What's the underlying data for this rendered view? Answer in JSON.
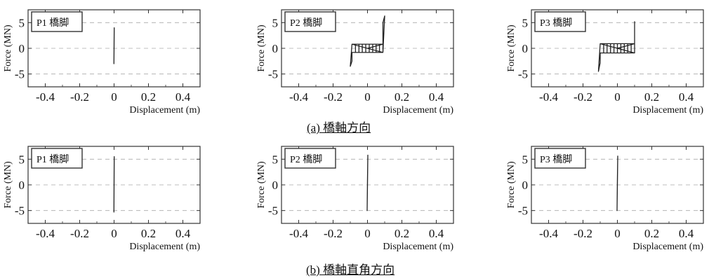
{
  "captions": {
    "a": "(a) 橋軸方向",
    "b": "(b) 橋軸直角方向"
  },
  "colors": {
    "line": "#222222",
    "grid": "#aaaaaa"
  },
  "chart_data": [
    {
      "type": "line",
      "group": "a",
      "label": "P1 橋脚",
      "xlabel": "Displacement (m)",
      "ylabel": "Force (MN)",
      "xlim": [
        -0.5,
        0.5
      ],
      "ylim": [
        -7.5,
        7.5
      ],
      "xticks": [
        -0.4,
        -0.2,
        0,
        0.2,
        0.4
      ],
      "yticks": [
        -5,
        0,
        5
      ],
      "xtick_labels": [
        "-0.4",
        "-0.2",
        "0",
        "0.2",
        "0.4"
      ],
      "ytick_labels": [
        "-5",
        "0",
        "5"
      ],
      "grid": true,
      "series": [
        {
          "x": [
            0,
            0.001,
            0,
            -0.001,
            0
          ],
          "y": [
            0,
            4.0,
            1.0,
            -3.0,
            0
          ]
        }
      ]
    },
    {
      "type": "line",
      "group": "a",
      "label": "P2 橋脚",
      "xlabel": "Displacement (m)",
      "ylabel": "Force (MN)",
      "xlim": [
        -0.5,
        0.5
      ],
      "ylim": [
        -7.5,
        7.5
      ],
      "xticks": [
        -0.4,
        -0.2,
        0,
        0.2,
        0.4
      ],
      "yticks": [
        -5,
        0,
        5
      ],
      "xtick_labels": [
        "-0.4",
        "-0.2",
        "0",
        "0.2",
        "0.4"
      ],
      "ytick_labels": [
        "-5",
        "0",
        "5"
      ],
      "grid": true,
      "series": [
        {
          "x": [
            0,
            0.09,
            0.09,
            0.1,
            0.09,
            -0.09,
            -0.09,
            -0.1,
            -0.09,
            0.09,
            0.09,
            -0.09,
            -0.07,
            -0.07,
            -0.05,
            -0.05,
            -0.03,
            -0.03,
            -0.01,
            -0.01,
            0.01,
            0.01,
            0.03,
            0.03,
            0.05,
            0.05,
            0.07,
            0.07
          ],
          "y": [
            0,
            0.8,
            5.0,
            6.3,
            -0.8,
            -0.8,
            -2.5,
            -3.5,
            0.8,
            0.8,
            -0.8,
            0.8,
            0.8,
            -0.8,
            -0.8,
            0.8,
            0.8,
            -0.8,
            -0.8,
            0.8,
            0.8,
            -0.8,
            -0.8,
            0.8,
            0.8,
            -0.8,
            -0.8,
            0.8
          ]
        }
      ]
    },
    {
      "type": "line",
      "group": "a",
      "label": "P3 橋脚",
      "xlabel": "Displacement (m)",
      "ylabel": "Force (MN)",
      "xlim": [
        -0.5,
        0.5
      ],
      "ylim": [
        -7.5,
        7.5
      ],
      "xticks": [
        -0.4,
        -0.2,
        0,
        0.2,
        0.4
      ],
      "yticks": [
        -5,
        0,
        5
      ],
      "xtick_labels": [
        "-0.4",
        "-0.2",
        "0",
        "0.2",
        "0.4"
      ],
      "ytick_labels": [
        "-5",
        "0",
        "5"
      ],
      "grid": true,
      "series": [
        {
          "x": [
            0,
            0.1,
            0.1,
            0.1,
            0.1,
            -0.1,
            -0.1,
            -0.11,
            -0.1,
            0.1,
            0.1,
            -0.1,
            -0.08,
            -0.08,
            -0.06,
            -0.06,
            -0.04,
            -0.04,
            -0.02,
            -0.02,
            0,
            0,
            0.02,
            0.02,
            0.04,
            0.04,
            0.06,
            0.06,
            0.08,
            0.08
          ],
          "y": [
            0,
            0.9,
            3.5,
            5.2,
            -0.9,
            -0.9,
            -2.8,
            -4.5,
            0.9,
            0.9,
            -0.9,
            0.9,
            0.9,
            -0.9,
            -0.9,
            0.9,
            0.9,
            -0.9,
            -0.9,
            0.9,
            0.9,
            -0.9,
            -0.9,
            0.9,
            0.9,
            -0.9,
            -0.9,
            0.9,
            0.9,
            -0.9
          ]
        }
      ]
    },
    {
      "type": "line",
      "group": "b",
      "label": "P1 橋脚",
      "xlabel": "Displacement (m)",
      "ylabel": "Force (MN)",
      "xlim": [
        -0.5,
        0.5
      ],
      "ylim": [
        -7.5,
        7.5
      ],
      "xticks": [
        -0.4,
        -0.2,
        0,
        0.2,
        0.4
      ],
      "yticks": [
        -5,
        0,
        5
      ],
      "xtick_labels": [
        "-0.4",
        "-0.2",
        "0",
        "0.2",
        "0.4"
      ],
      "ytick_labels": [
        "-5",
        "0",
        "5"
      ],
      "grid": true,
      "series": [
        {
          "x": [
            0,
            0.001,
            0,
            -0.001,
            0
          ],
          "y": [
            0,
            5.5,
            1.0,
            -5.3,
            0
          ]
        }
      ]
    },
    {
      "type": "line",
      "group": "b",
      "label": "P2 橋脚",
      "xlabel": "Displacement (m)",
      "ylabel": "Force (MN)",
      "xlim": [
        -0.5,
        0.5
      ],
      "ylim": [
        -7.5,
        7.5
      ],
      "xticks": [
        -0.4,
        -0.2,
        0,
        0.2,
        0.4
      ],
      "yticks": [
        -5,
        0,
        5
      ],
      "xtick_labels": [
        "-0.4",
        "-0.2",
        "0",
        "0.2",
        "0.4"
      ],
      "ytick_labels": [
        "-5",
        "0",
        "5"
      ],
      "grid": true,
      "series": [
        {
          "x": [
            0,
            0.002,
            0,
            -0.002,
            0
          ],
          "y": [
            0,
            5.8,
            1.0,
            -5.0,
            0
          ]
        }
      ]
    },
    {
      "type": "line",
      "group": "b",
      "label": "P3 橋脚",
      "xlabel": "Displacement (m)",
      "ylabel": "Force (MN)",
      "xlim": [
        -0.5,
        0.5
      ],
      "ylim": [
        -7.5,
        7.5
      ],
      "xticks": [
        -0.4,
        -0.2,
        0,
        0.2,
        0.4
      ],
      "yticks": [
        -5,
        0,
        5
      ],
      "xtick_labels": [
        "-0.4",
        "-0.2",
        "0",
        "0.2",
        "0.4"
      ],
      "ytick_labels": [
        "-5",
        "0",
        "5"
      ],
      "grid": true,
      "series": [
        {
          "x": [
            0,
            0.002,
            0,
            -0.002,
            0
          ],
          "y": [
            0,
            5.6,
            1.0,
            -5.0,
            0
          ]
        }
      ]
    }
  ]
}
